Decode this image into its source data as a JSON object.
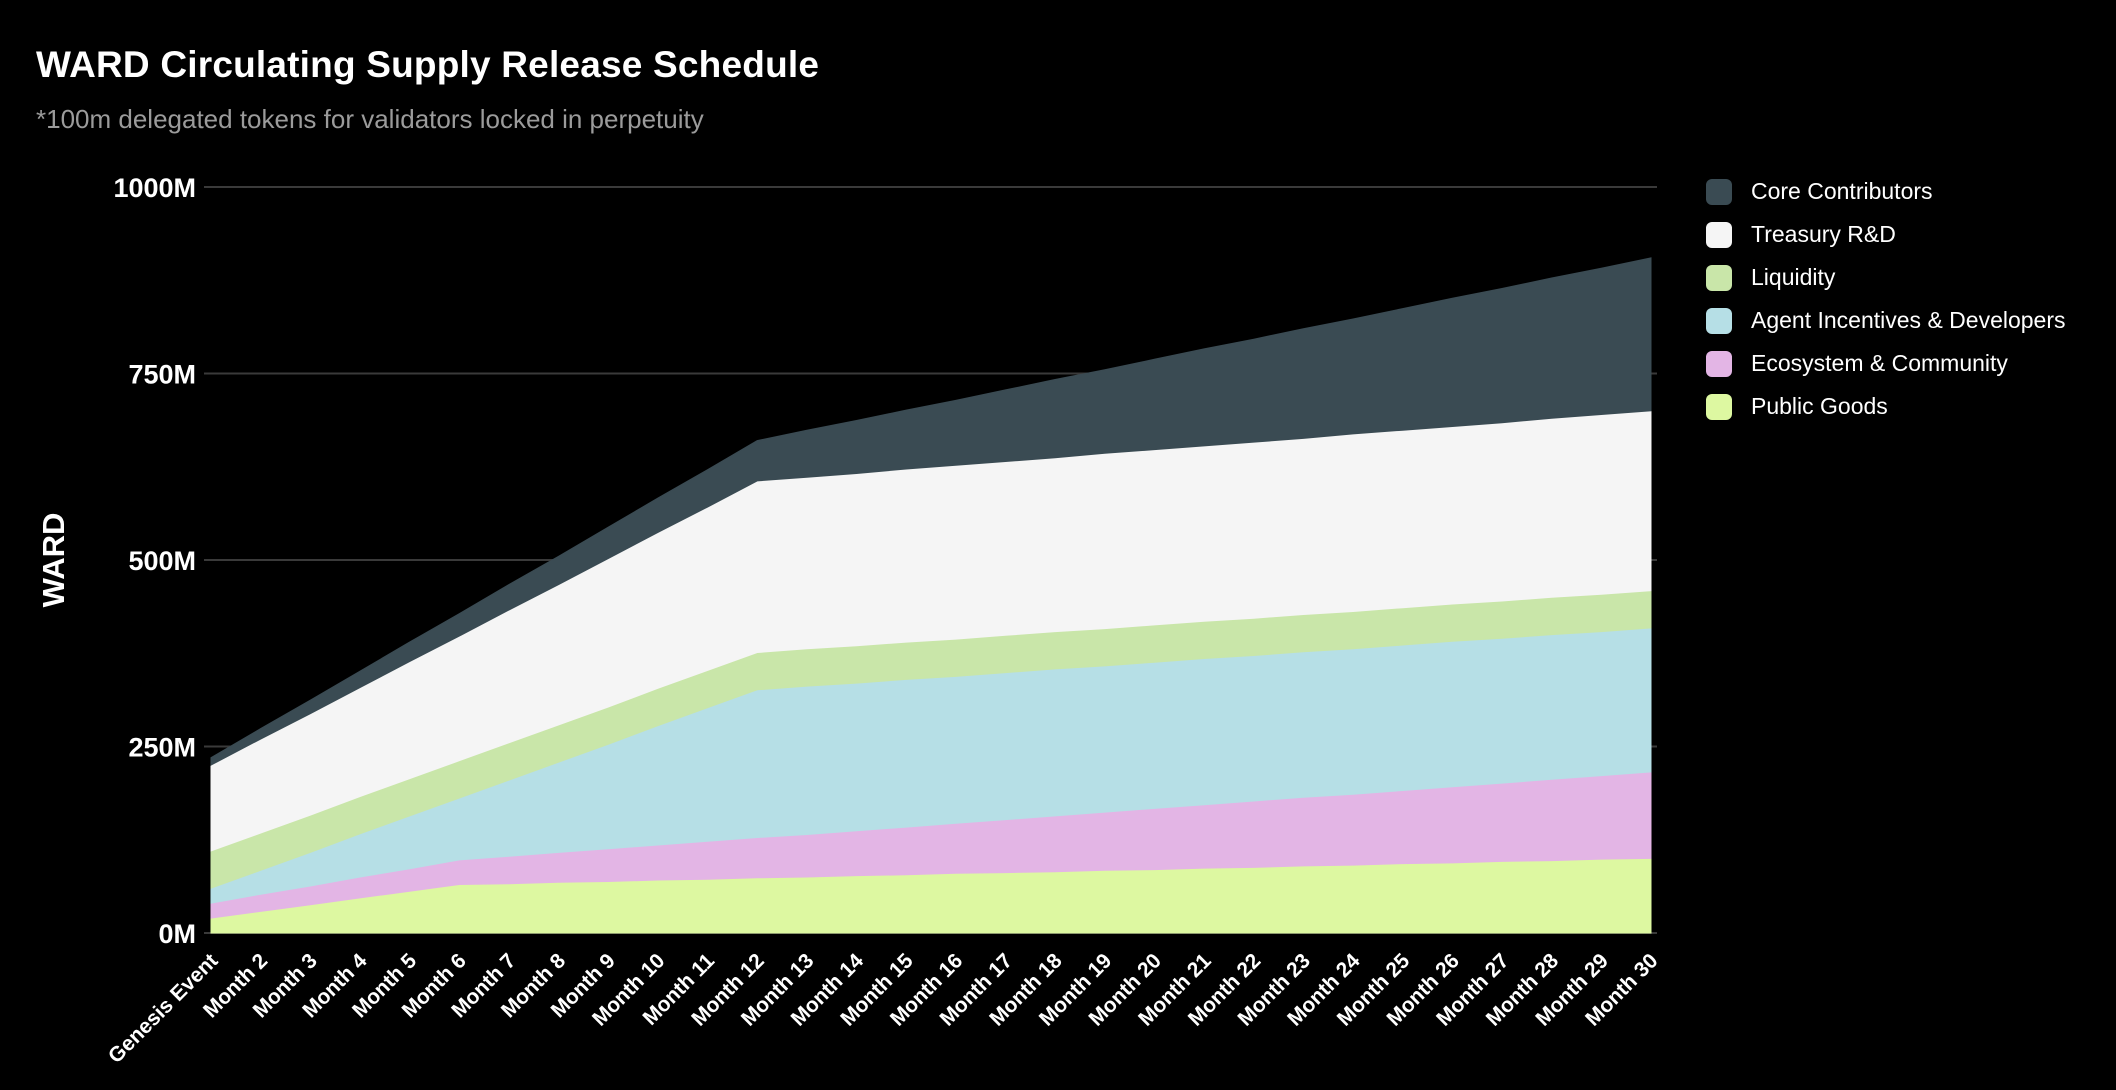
{
  "page": {
    "background": "#000000"
  },
  "header": {
    "title": "WARD Circulating Supply Release Schedule",
    "subtitle": "*100m delegated tokens for validators locked in perpetuity"
  },
  "chart_data": {
    "type": "area",
    "stacked": true,
    "title": "WARD Circulating Supply Release Schedule",
    "xlabel": "",
    "ylabel": "WARD",
    "unit": "millions of WARD tokens",
    "ylim": [
      0,
      1000
    ],
    "grid": "horizontal",
    "grid_color": "#3a3a3a",
    "background_color": "#000000",
    "legend_position": "right",
    "y_ticks": [
      {
        "label": "0M",
        "value": 0
      },
      {
        "label": "250M",
        "value": 250
      },
      {
        "label": "500M",
        "value": 500
      },
      {
        "label": "750M",
        "value": 750
      },
      {
        "label": "1000M",
        "value": 1000
      }
    ],
    "categories": [
      "Genesis Event",
      "Month 2",
      "Month 3",
      "Month 4",
      "Month 5",
      "Month 6",
      "Month 7",
      "Month 8",
      "Month 9",
      "Month 10",
      "Month 11",
      "Month 12",
      "Month 13",
      "Month 14",
      "Month 15",
      "Month 16",
      "Month 17",
      "Month 18",
      "Month 19",
      "Month 20",
      "Month 21",
      "Month 22",
      "Month 23",
      "Month 24",
      "Month 25",
      "Month 26",
      "Month 27",
      "Month 28",
      "Month 29",
      "Month 30"
    ],
    "series": [
      {
        "name": "Public Goods",
        "color": "#ddf8a1",
        "values": [
          20,
          29,
          38,
          47,
          56,
          65,
          66,
          68,
          69,
          71,
          72,
          74,
          75,
          77,
          78,
          80,
          81,
          82,
          84,
          85,
          87,
          88,
          90,
          91,
          93,
          94,
          96,
          97,
          99,
          100
        ]
      },
      {
        "name": "Ecosystem & Community",
        "color": "#e3b5e5",
        "values": [
          20,
          23,
          25,
          28,
          30,
          33,
          37,
          40,
          44,
          47,
          51,
          54,
          57,
          60,
          64,
          67,
          71,
          75,
          78,
          82,
          85,
          89,
          92,
          95,
          98,
          102,
          105,
          109,
          112,
          116
        ]
      },
      {
        "name": "Agent Incentives & Developers",
        "color": "#b6dfe6",
        "values": [
          20,
          32,
          45,
          58,
          71,
          83,
          102,
          121,
          140,
          160,
          179,
          198,
          199,
          198,
          198,
          197,
          197,
          197,
          196,
          196,
          196,
          195,
          195,
          195,
          195,
          195,
          194,
          194,
          193,
          193
        ]
      },
      {
        "name": "Liquidity",
        "color": "#c9e6a9",
        "values": [
          50,
          50,
          50,
          50,
          50,
          50,
          50,
          50,
          50,
          50,
          50,
          50,
          50,
          50,
          50,
          50,
          50,
          50,
          50,
          50,
          50,
          50,
          50,
          50,
          50,
          50,
          50,
          50,
          50,
          50
        ]
      },
      {
        "name": "Treasury R&D",
        "color": "#f5f5f5",
        "values": [
          115,
          126,
          136,
          146,
          157,
          167,
          178,
          188,
          199,
          209,
          219,
          230,
          230,
          231,
          232,
          233,
          233,
          233,
          235,
          235,
          235,
          236,
          236,
          238,
          238,
          238,
          239,
          240,
          241,
          241
        ]
      },
      {
        "name": "Core Contributors",
        "color": "#3a4b53",
        "values": [
          10,
          14,
          18,
          22,
          26,
          30,
          34,
          38,
          42,
          46,
          50,
          54,
          63,
          71,
          79,
          87,
          96,
          105,
          112,
          121,
          130,
          138,
          147,
          154,
          163,
          172,
          180,
          188,
          196,
          205
        ]
      }
    ]
  },
  "legend": {
    "items": [
      {
        "label": "Core Contributors",
        "color": "#3a4b53"
      },
      {
        "label": "Treasury R&D",
        "color": "#f5f5f5"
      },
      {
        "label": "Liquidity",
        "color": "#c9e6a9"
      },
      {
        "label": "Agent Incentives & Developers",
        "color": "#b6dfe6"
      },
      {
        "label": "Ecosystem & Community",
        "color": "#e3b5e5"
      },
      {
        "label": "Public Goods",
        "color": "#ddf8a1"
      }
    ]
  }
}
